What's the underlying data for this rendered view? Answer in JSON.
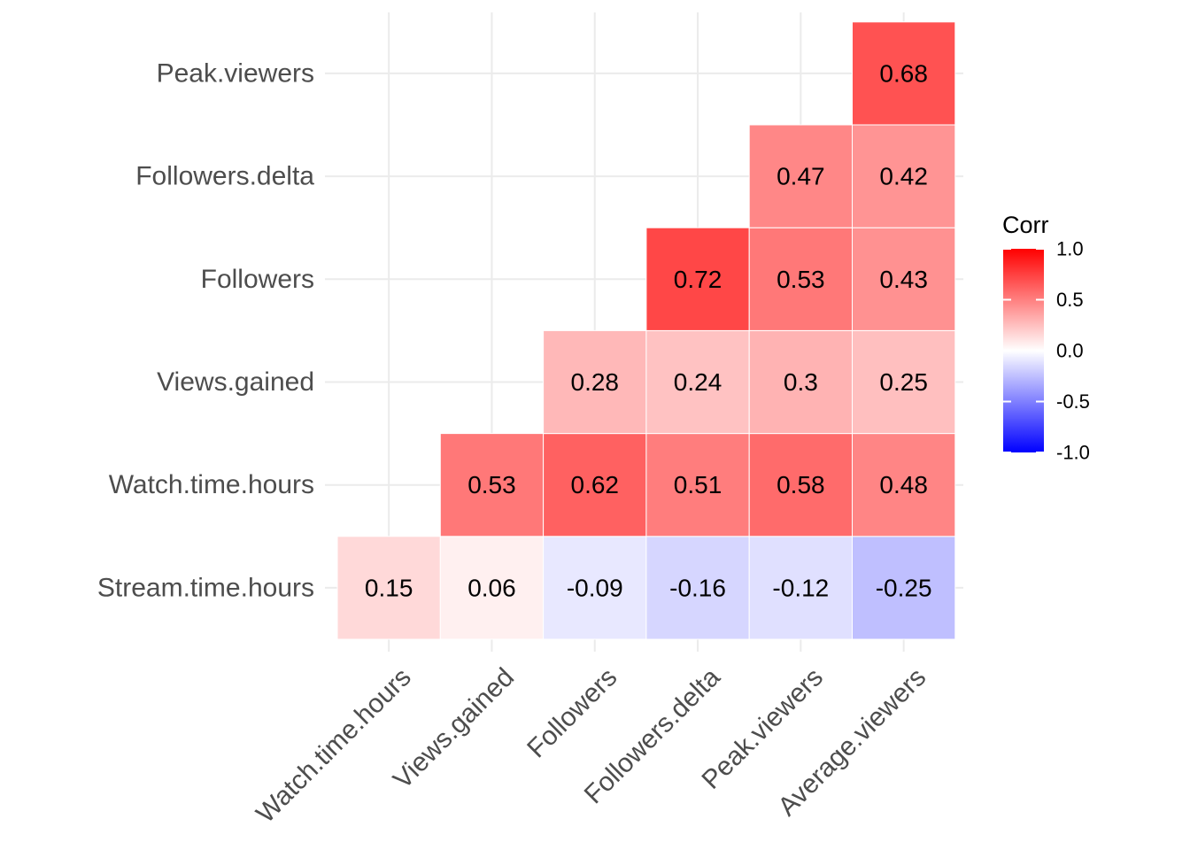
{
  "chart_data": {
    "type": "heatmap",
    "title": "",
    "xlabel": "",
    "ylabel": "",
    "x_categories": [
      "Watch.time.hours",
      "Views.gained",
      "Followers",
      "Followers.delta",
      "Peak.viewers",
      "Average.viewers"
    ],
    "y_categories": [
      "Stream.time.hours",
      "Watch.time.hours",
      "Views.gained",
      "Followers",
      "Followers.delta",
      "Peak.viewers"
    ],
    "cells": [
      {
        "x": "Watch.time.hours",
        "y": "Stream.time.hours",
        "value": 0.15,
        "label": "0.15"
      },
      {
        "x": "Views.gained",
        "y": "Stream.time.hours",
        "value": 0.06,
        "label": "0.06"
      },
      {
        "x": "Followers",
        "y": "Stream.time.hours",
        "value": -0.09,
        "label": "-0.09"
      },
      {
        "x": "Followers.delta",
        "y": "Stream.time.hours",
        "value": -0.16,
        "label": "-0.16"
      },
      {
        "x": "Peak.viewers",
        "y": "Stream.time.hours",
        "value": -0.12,
        "label": "-0.12"
      },
      {
        "x": "Average.viewers",
        "y": "Stream.time.hours",
        "value": -0.25,
        "label": "-0.25"
      },
      {
        "x": "Views.gained",
        "y": "Watch.time.hours",
        "value": 0.53,
        "label": "0.53"
      },
      {
        "x": "Followers",
        "y": "Watch.time.hours",
        "value": 0.62,
        "label": "0.62"
      },
      {
        "x": "Followers.delta",
        "y": "Watch.time.hours",
        "value": 0.51,
        "label": "0.51"
      },
      {
        "x": "Peak.viewers",
        "y": "Watch.time.hours",
        "value": 0.58,
        "label": "0.58"
      },
      {
        "x": "Average.viewers",
        "y": "Watch.time.hours",
        "value": 0.48,
        "label": "0.48"
      },
      {
        "x": "Followers",
        "y": "Views.gained",
        "value": 0.28,
        "label": "0.28"
      },
      {
        "x": "Followers.delta",
        "y": "Views.gained",
        "value": 0.24,
        "label": "0.24"
      },
      {
        "x": "Peak.viewers",
        "y": "Views.gained",
        "value": 0.3,
        "label": "0.3"
      },
      {
        "x": "Average.viewers",
        "y": "Views.gained",
        "value": 0.25,
        "label": "0.25"
      },
      {
        "x": "Followers.delta",
        "y": "Followers",
        "value": 0.72,
        "label": "0.72"
      },
      {
        "x": "Peak.viewers",
        "y": "Followers",
        "value": 0.53,
        "label": "0.53"
      },
      {
        "x": "Average.viewers",
        "y": "Followers",
        "value": 0.43,
        "label": "0.43"
      },
      {
        "x": "Peak.viewers",
        "y": "Followers.delta",
        "value": 0.47,
        "label": "0.47"
      },
      {
        "x": "Average.viewers",
        "y": "Followers.delta",
        "value": 0.42,
        "label": "0.42"
      },
      {
        "x": "Average.viewers",
        "y": "Peak.viewers",
        "value": 0.68,
        "label": "0.68"
      }
    ],
    "color_scale": {
      "low": "#0000ff",
      "mid": "#ffffff",
      "high": "#ff0000",
      "limits": [
        -1,
        1
      ]
    },
    "legend": {
      "title": "Corr",
      "position": "right",
      "ticks": [
        {
          "value": 1.0,
          "label": "1.0"
        },
        {
          "value": 0.5,
          "label": "0.5"
        },
        {
          "value": 0.0,
          "label": "0.0"
        },
        {
          "value": -0.5,
          "label": "-0.5"
        },
        {
          "value": -1.0,
          "label": "-1.0"
        }
      ]
    },
    "grid": true
  }
}
